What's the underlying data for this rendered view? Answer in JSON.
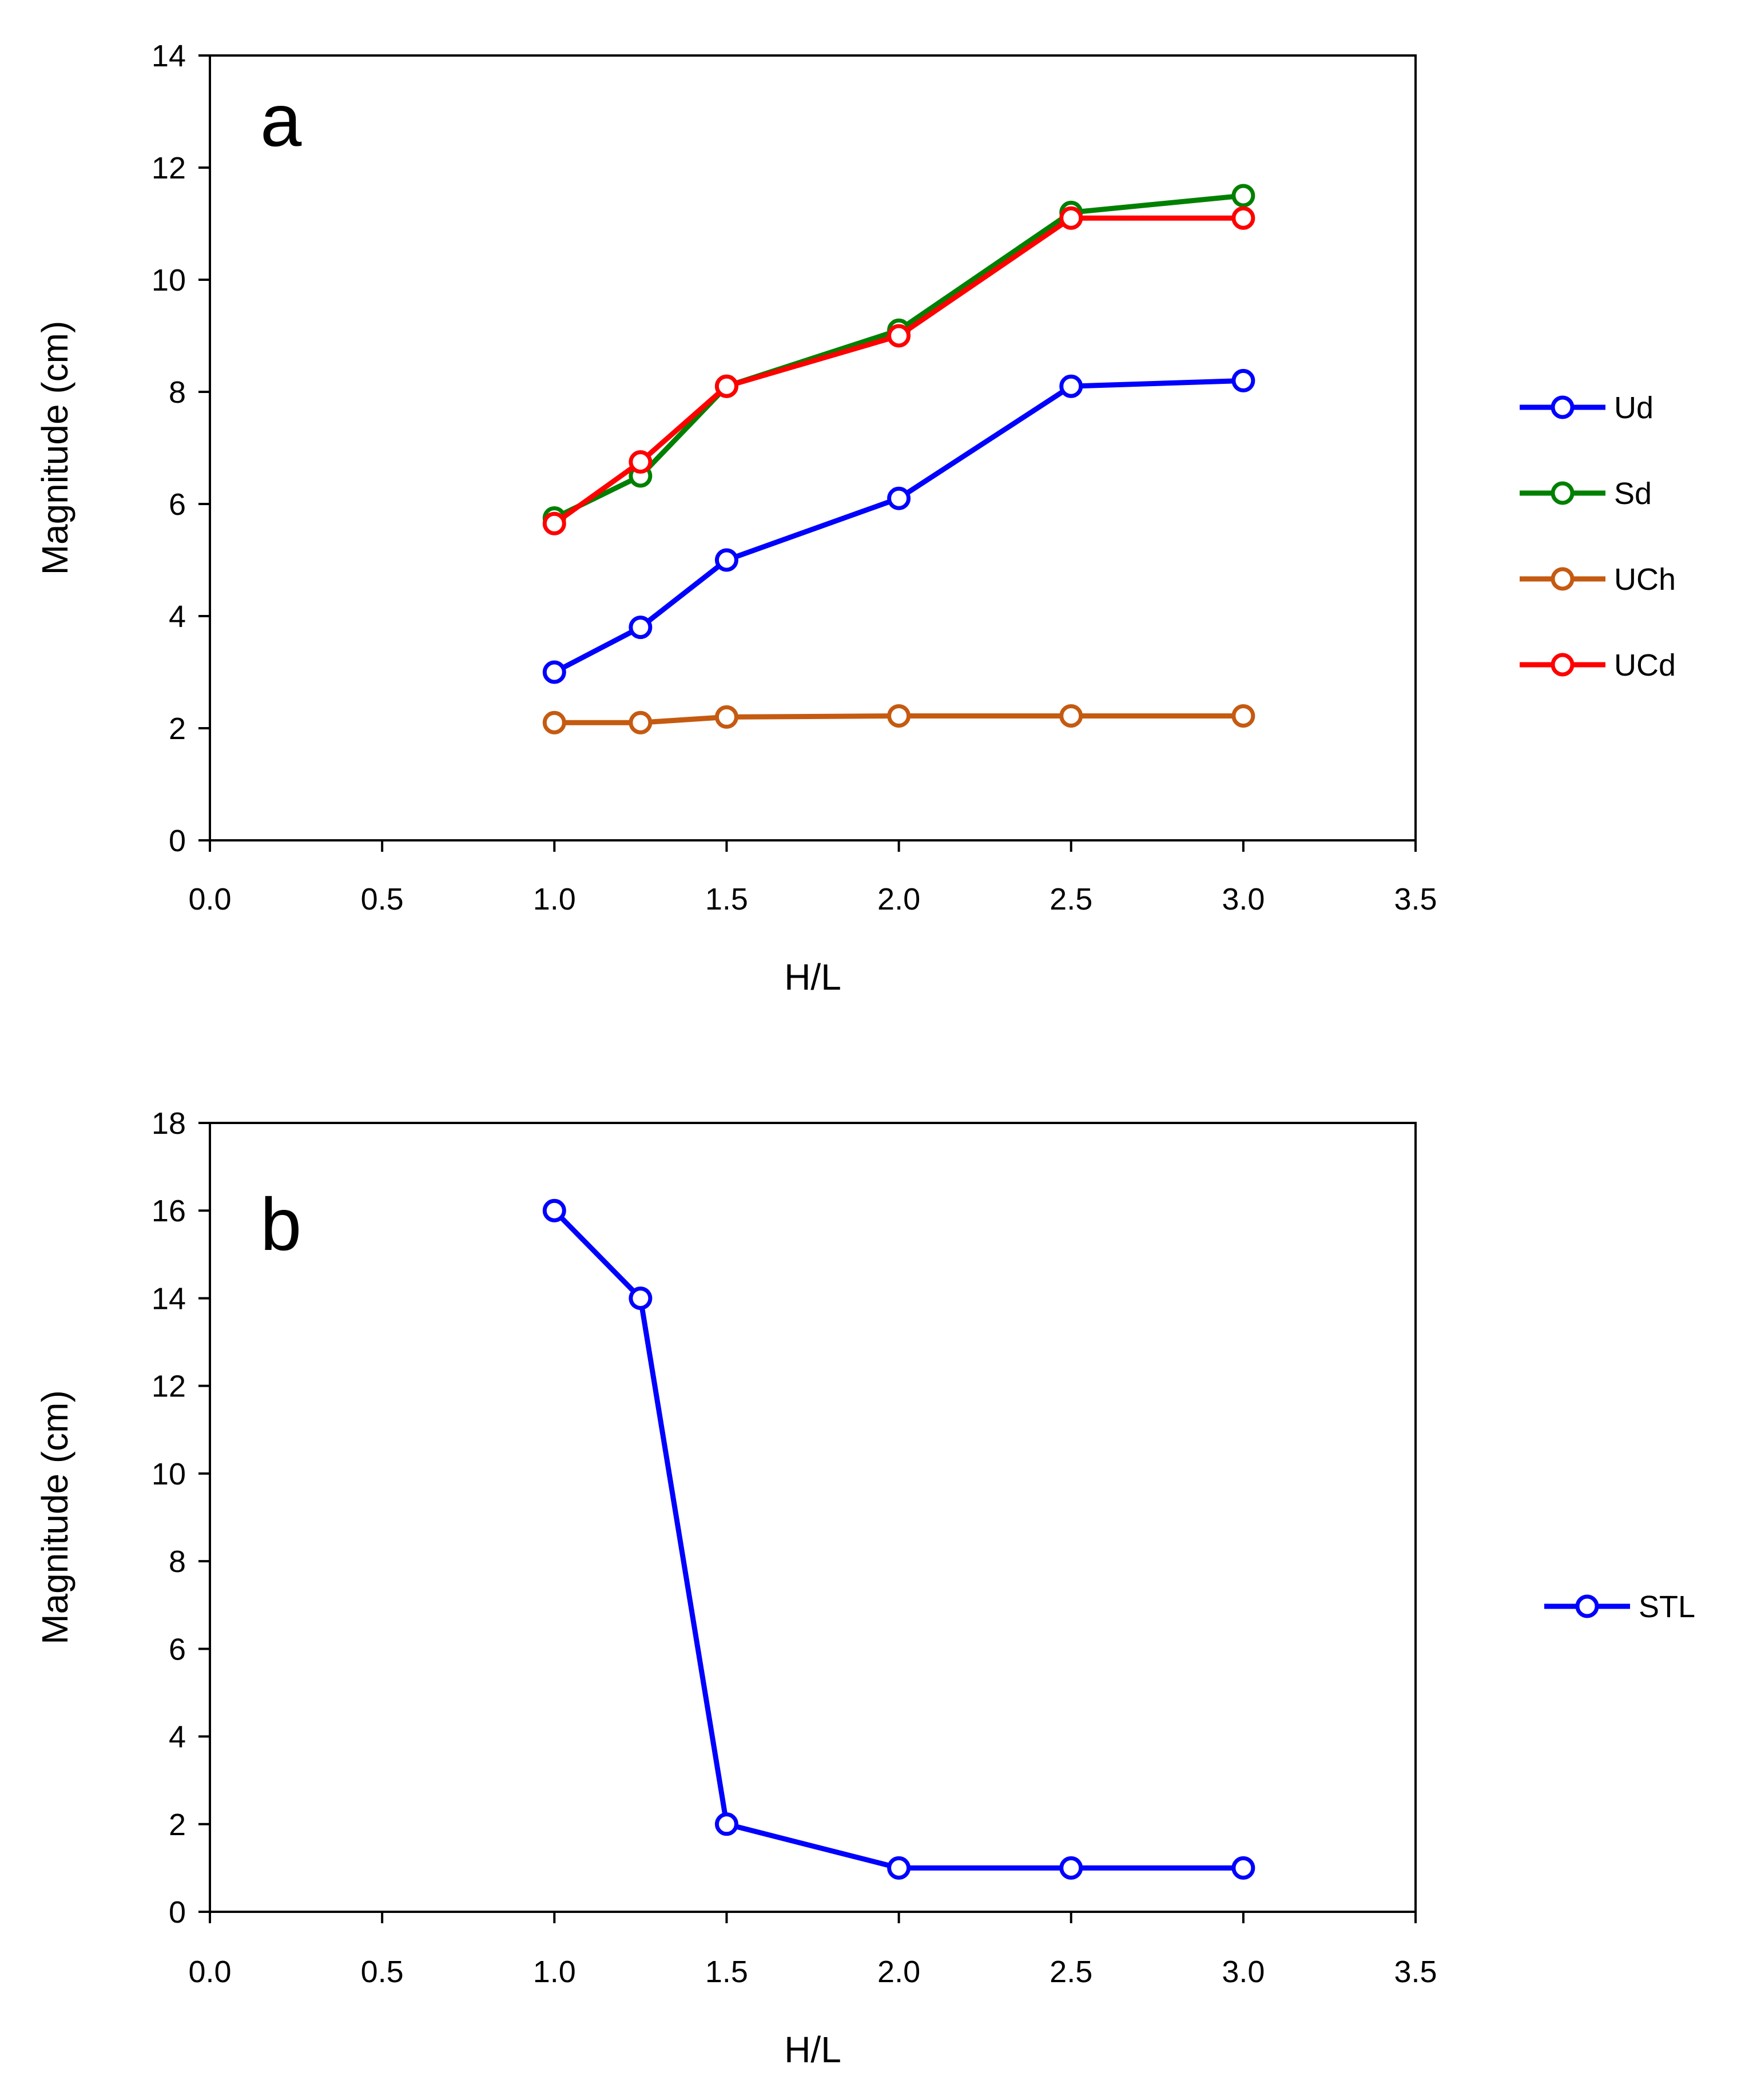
{
  "chart_data": [
    {
      "type": "line",
      "panel_label": "a",
      "xlabel": "H/L",
      "ylabel": "Magnitude (cm)",
      "xlim": [
        0,
        3.5
      ],
      "ylim": [
        0,
        14
      ],
      "xticks": [
        0.0,
        0.5,
        1.0,
        1.5,
        2.0,
        2.5,
        3.0,
        3.5
      ],
      "xtick_labels": [
        "0.0",
        "0.5",
        "1.0",
        "1.5",
        "2.0",
        "2.5",
        "3.0",
        "3.5"
      ],
      "yticks": [
        0,
        2,
        4,
        6,
        8,
        10,
        12,
        14
      ],
      "ytick_labels": [
        "0",
        "2",
        "4",
        "6",
        "8",
        "10",
        "12",
        "14"
      ],
      "grid": false,
      "legend_position": "right",
      "x": [
        1.0,
        1.25,
        1.5,
        2.0,
        2.5,
        3.0
      ],
      "series": [
        {
          "name": "Ud",
          "color": "#0000ff",
          "values": [
            3.0,
            3.8,
            5.0,
            6.1,
            8.1,
            8.2
          ]
        },
        {
          "name": "Sd",
          "color": "#008000",
          "values": [
            5.75,
            6.5,
            8.1,
            9.1,
            11.2,
            11.5
          ]
        },
        {
          "name": "UCh",
          "color": "#c55a11",
          "values": [
            2.1,
            2.1,
            2.2,
            2.22,
            2.22,
            2.22
          ]
        },
        {
          "name": "UCd",
          "color": "#ff0000",
          "values": [
            5.65,
            6.75,
            8.1,
            9.0,
            11.1,
            11.1
          ]
        }
      ]
    },
    {
      "type": "line",
      "panel_label": "b",
      "xlabel": "H/L",
      "ylabel": "Magnitude (cm)",
      "xlim": [
        0,
        3.5
      ],
      "ylim": [
        0,
        18
      ],
      "xticks": [
        0.0,
        0.5,
        1.0,
        1.5,
        2.0,
        2.5,
        3.0,
        3.5
      ],
      "xtick_labels": [
        "0.0",
        "0.5",
        "1.0",
        "1.5",
        "2.0",
        "2.5",
        "3.0",
        "3.5"
      ],
      "yticks": [
        0,
        2,
        4,
        6,
        8,
        10,
        12,
        14,
        16,
        18
      ],
      "ytick_labels": [
        "0",
        "2",
        "4",
        "6",
        "8",
        "10",
        "12",
        "14",
        "16",
        "18"
      ],
      "grid": false,
      "legend_position": "right",
      "x": [
        1.0,
        1.25,
        1.5,
        2.0,
        2.5,
        3.0
      ],
      "series": [
        {
          "name": "STL",
          "color": "#0000ff",
          "values": [
            16,
            14,
            2,
            1,
            1,
            1
          ]
        }
      ]
    }
  ]
}
